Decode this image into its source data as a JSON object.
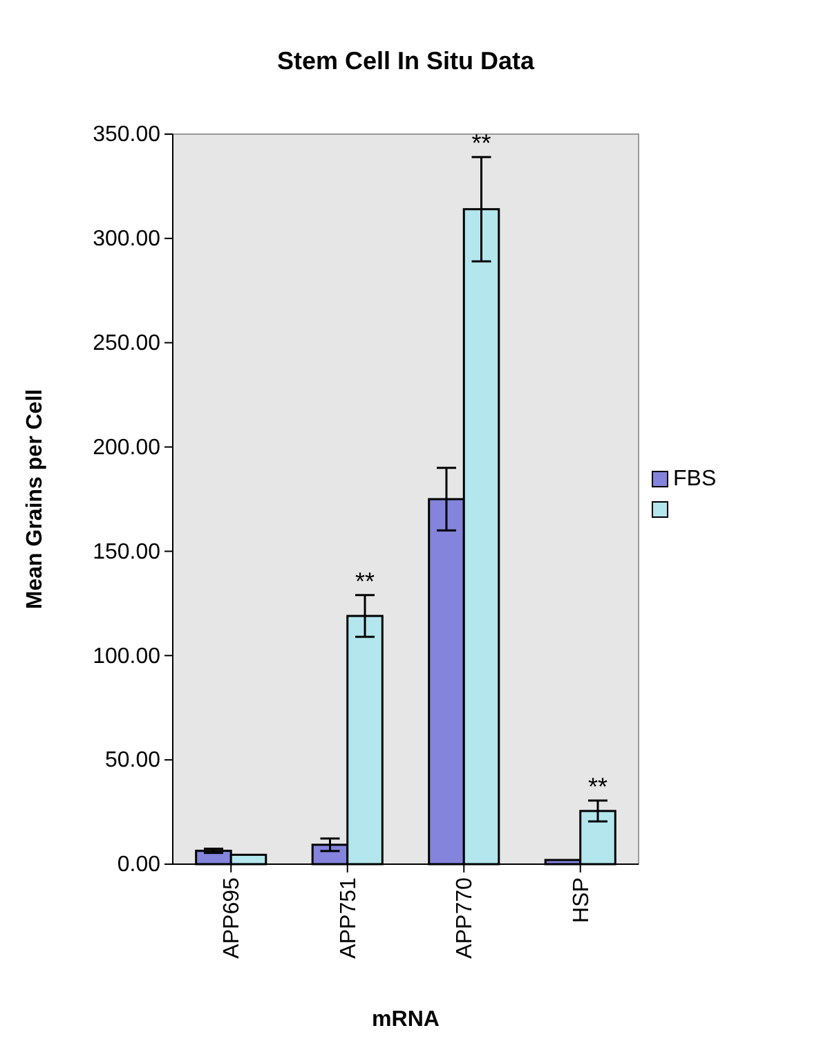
{
  "chart_data": {
    "type": "bar",
    "title": "Stem Cell In Situ Data",
    "xlabel": "mRNA",
    "ylabel": "Mean Grains per Cell",
    "categories": [
      "APP695",
      "APP751",
      "APP770",
      "HSP"
    ],
    "series": [
      {
        "name": "FBS",
        "color": "#8484dc",
        "values": [
          6.4,
          9.3,
          175,
          2
        ],
        "errors": [
          1,
          3,
          15,
          null
        ]
      },
      {
        "color": "#b4e6ee",
        "values": [
          4.5,
          119,
          314,
          25.5
        ],
        "errors": [
          null,
          10,
          25,
          5
        ]
      }
    ],
    "ylim": [
      0,
      350
    ],
    "yticks": [
      {
        "value": 0,
        "label": "0.00"
      },
      {
        "value": 50,
        "label": "50.00"
      },
      {
        "value": 100,
        "label": "100.00"
      },
      {
        "value": 150,
        "label": "150.00"
      },
      {
        "value": 200,
        "label": "200.00"
      },
      {
        "value": 250,
        "label": "250.00"
      },
      {
        "value": 300,
        "label": "300.00"
      },
      {
        "value": 350,
        "label": "350.00"
      }
    ],
    "legend": "right",
    "annotations": [
      {
        "text": "**",
        "x": "APP751",
        "y": 119
      },
      {
        "text": "**",
        "x": "APP770",
        "y": 314
      },
      {
        "text": "**",
        "x": "HSP",
        "y": 25.5
      }
    ]
  }
}
